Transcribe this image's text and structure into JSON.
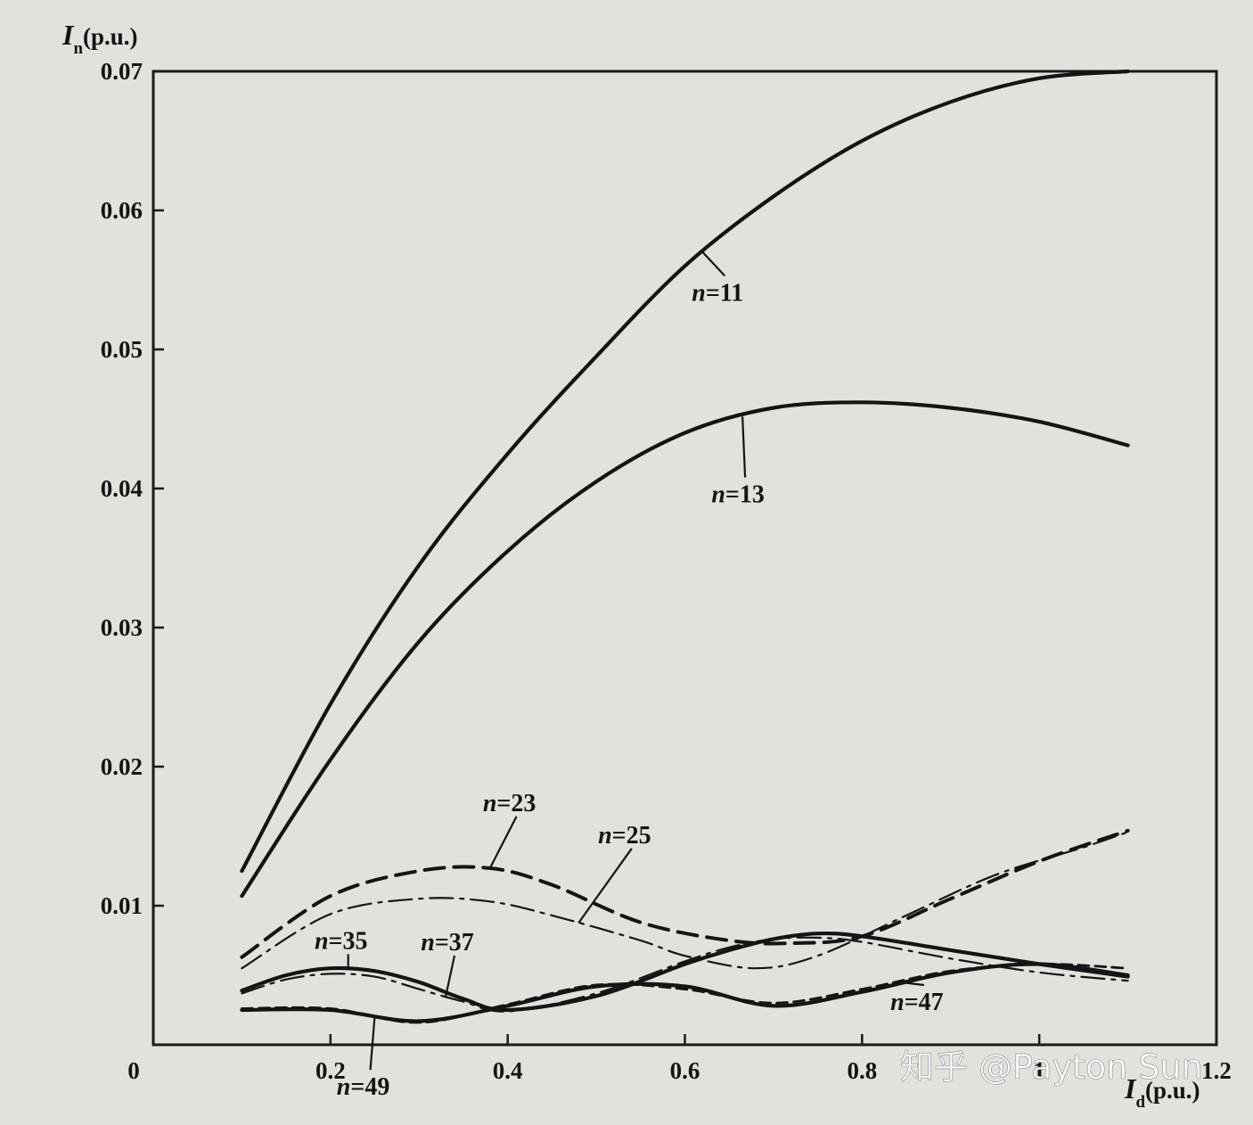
{
  "chart_data": {
    "type": "line",
    "title": "",
    "ylabel_symbol": "I",
    "ylabel_sub": "n",
    "ylabel_unit": "(p.u.)",
    "xlabel_symbol": "I",
    "xlabel_sub": "d",
    "xlabel_unit": "(p.u.)",
    "origin_label": "0",
    "xlim": [
      0,
      1.2
    ],
    "ylim": [
      0,
      0.07
    ],
    "x_ticks": [
      {
        "value": 0.2,
        "label": "0.2"
      },
      {
        "value": 0.4,
        "label": "0.4"
      },
      {
        "value": 0.6,
        "label": "0.6"
      },
      {
        "value": 0.8,
        "label": "0.8"
      },
      {
        "value": 1.0,
        "label": "1"
      },
      {
        "value": 1.2,
        "label": "1.2"
      }
    ],
    "y_ticks": [
      {
        "value": 0.01,
        "label": "0.01"
      },
      {
        "value": 0.02,
        "label": "0.02"
      },
      {
        "value": 0.03,
        "label": "0.03"
      },
      {
        "value": 0.04,
        "label": "0.04"
      },
      {
        "value": 0.05,
        "label": "0.05"
      },
      {
        "value": 0.06,
        "label": "0.06"
      },
      {
        "value": 0.07,
        "label": "0.07"
      }
    ],
    "grid": false,
    "legend": "inline labels",
    "series": [
      {
        "name": "n=11",
        "style": "solid-thick",
        "x": [
          0.1,
          0.2,
          0.3,
          0.4,
          0.5,
          0.6,
          0.7,
          0.8,
          0.9,
          1.0,
          1.1
        ],
        "y": [
          0.0125,
          0.0245,
          0.0345,
          0.0425,
          0.0495,
          0.056,
          0.061,
          0.065,
          0.0678,
          0.0695,
          0.07
        ],
        "leader_at": 0.62,
        "label_x": 0.645,
        "label_y": 0.0535
      },
      {
        "name": "n=13",
        "style": "solid-thick",
        "x": [
          0.1,
          0.2,
          0.3,
          0.4,
          0.5,
          0.6,
          0.7,
          0.8,
          0.9,
          1.0,
          1.1
        ],
        "y": [
          0.0107,
          0.0205,
          0.029,
          0.0355,
          0.0405,
          0.044,
          0.0458,
          0.0462,
          0.0458,
          0.0448,
          0.0431
        ],
        "leader_at": 0.665,
        "label_x": 0.668,
        "label_y": 0.039
      },
      {
        "name": "n=23",
        "style": "dashed-thick",
        "x": [
          0.1,
          0.2,
          0.3,
          0.38,
          0.45,
          0.55,
          0.65,
          0.72,
          0.8,
          0.9,
          1.0,
          1.1
        ],
        "y": [
          0.0063,
          0.0107,
          0.0125,
          0.0127,
          0.0115,
          0.0088,
          0.0075,
          0.0073,
          0.0078,
          0.0105,
          0.0132,
          0.0154
        ],
        "leader_at": 0.38,
        "label_x": 0.41,
        "label_y": 0.0168
      },
      {
        "name": "n=25",
        "style": "dashdot-thin",
        "x": [
          0.1,
          0.2,
          0.3,
          0.38,
          0.45,
          0.55,
          0.6,
          0.68,
          0.75,
          0.85,
          0.95,
          1.05,
          1.1
        ],
        "y": [
          0.0055,
          0.0094,
          0.0105,
          0.0103,
          0.0093,
          0.0075,
          0.0064,
          0.0055,
          0.0064,
          0.0093,
          0.0122,
          0.0142,
          0.0153
        ],
        "leader_at": 0.48,
        "label_x": 0.54,
        "label_y": 0.0145
      },
      {
        "name": "n=35",
        "style": "solid-thick",
        "x": [
          0.1,
          0.15,
          0.2,
          0.25,
          0.3,
          0.35,
          0.4,
          0.5,
          0.6,
          0.65,
          0.7,
          0.75,
          0.8,
          0.9,
          1.0,
          1.1
        ],
        "y": [
          0.0039,
          0.005,
          0.0055,
          0.0053,
          0.0045,
          0.0033,
          0.0025,
          0.0035,
          0.0058,
          0.0068,
          0.0076,
          0.008,
          0.0078,
          0.0068,
          0.0058,
          0.0049
        ],
        "leader_at": 0.22,
        "label_x": 0.22,
        "label_y": 0.0069
      },
      {
        "name": "n=37",
        "style": "dashdot-thin",
        "x": [
          0.1,
          0.15,
          0.2,
          0.25,
          0.3,
          0.35,
          0.4,
          0.5,
          0.6,
          0.65,
          0.7,
          0.75,
          0.8,
          0.9,
          1.0,
          1.1
        ],
        "y": [
          0.0037,
          0.0047,
          0.0051,
          0.0049,
          0.004,
          0.0031,
          0.0024,
          0.0037,
          0.006,
          0.007,
          0.0076,
          0.0077,
          0.0074,
          0.0062,
          0.0052,
          0.0046
        ],
        "leader_at": 0.33,
        "label_x": 0.34,
        "label_y": 0.0068
      },
      {
        "name": "n=47",
        "style": "dashed-thin",
        "x": [
          0.1,
          0.2,
          0.3,
          0.4,
          0.5,
          0.6,
          0.7,
          0.8,
          0.9,
          1.0,
          1.1
        ],
        "y": [
          0.0026,
          0.0026,
          0.0016,
          0.0029,
          0.0043,
          0.004,
          0.003,
          0.004,
          0.0053,
          0.0058,
          0.0055
        ],
        "leader_at": 0.84,
        "label_x": 0.87,
        "label_y": 0.0025
      },
      {
        "name": "n=49",
        "style": "solid-thick",
        "x": [
          0.1,
          0.2,
          0.3,
          0.4,
          0.5,
          0.6,
          0.7,
          0.8,
          0.9,
          1.0,
          1.1
        ],
        "y": [
          0.0025,
          0.0025,
          0.0017,
          0.0028,
          0.0042,
          0.0042,
          0.0028,
          0.0038,
          0.0052,
          0.0058,
          0.005
        ],
        "leader_at": 0.25,
        "label_x": 0.245,
        "label_y": -0.0036
      }
    ]
  },
  "watermark": "知乎 @Payton Sun",
  "colors": {
    "background": "#e3e1dc",
    "ink": "#141414",
    "axes": "#1a1a1a"
  }
}
